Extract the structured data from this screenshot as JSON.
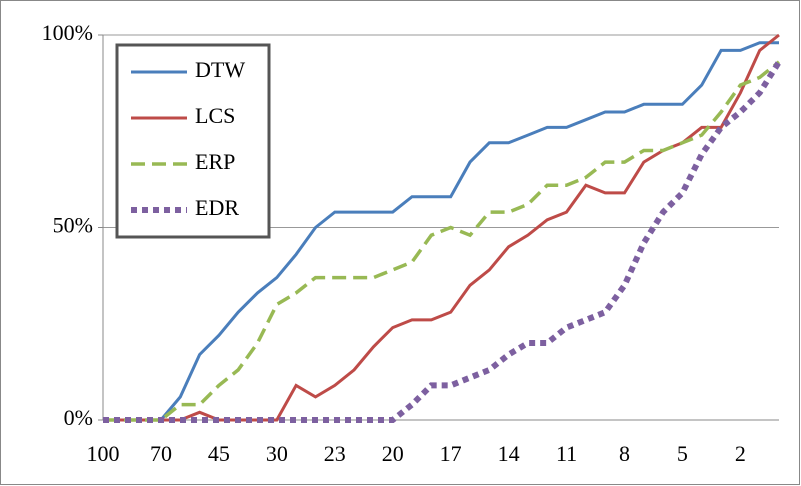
{
  "chart_data": {
    "type": "line",
    "categories": [
      "100",
      null,
      null,
      "70",
      null,
      null,
      "45",
      null,
      null,
      "30",
      null,
      null,
      "23",
      null,
      null,
      "20",
      null,
      null,
      "17",
      null,
      null,
      "14",
      null,
      null,
      "11",
      null,
      null,
      "8",
      null,
      null,
      "5",
      null,
      null,
      "2",
      null,
      null
    ],
    "series": [
      {
        "name": "DTW",
        "color": "#4a7ebb",
        "dash": "solid",
        "values": [
          0,
          0,
          0,
          0,
          6,
          17,
          22,
          28,
          33,
          37,
          43,
          50,
          54,
          54,
          54,
          54,
          58,
          58,
          58,
          67,
          72,
          72,
          74,
          76,
          76,
          78,
          80,
          80,
          82,
          82,
          82,
          87,
          96,
          96,
          98,
          98
        ]
      },
      {
        "name": "LCS",
        "color": "#be4b48",
        "dash": "solid",
        "values": [
          0,
          0,
          0,
          0,
          0,
          2,
          0,
          0,
          0,
          0,
          9,
          6,
          9,
          13,
          19,
          24,
          26,
          26,
          28,
          35,
          39,
          45,
          48,
          52,
          54,
          61,
          59,
          59,
          67,
          70,
          72,
          76,
          76,
          85,
          96,
          100
        ]
      },
      {
        "name": "ERP",
        "color": "#98b954",
        "dash": "dashed",
        "values": [
          0,
          0,
          0,
          0,
          4,
          4,
          9,
          13,
          20,
          30,
          33,
          37,
          37,
          37,
          37,
          39,
          41,
          48,
          50,
          48,
          54,
          54,
          56,
          61,
          61,
          63,
          67,
          67,
          70,
          70,
          72,
          74,
          80,
          87,
          89,
          93
        ]
      },
      {
        "name": "EDR",
        "color": "#7d60a0",
        "dash": "dotted",
        "values": [
          0,
          0,
          0,
          0,
          0,
          0,
          0,
          0,
          0,
          0,
          0,
          0,
          0,
          0,
          0,
          0,
          4,
          9,
          9,
          11,
          13,
          17,
          20,
          20,
          24,
          26,
          28,
          35,
          46,
          54,
          59,
          69,
          76,
          80,
          85,
          93
        ]
      }
    ],
    "ylim": [
      0,
      100
    ],
    "yticks": [
      {
        "value": 0,
        "label": "0%"
      },
      {
        "value": 50,
        "label": "50%"
      },
      {
        "value": 100,
        "label": "100%"
      }
    ],
    "grid": true,
    "legend": "top-left"
  }
}
